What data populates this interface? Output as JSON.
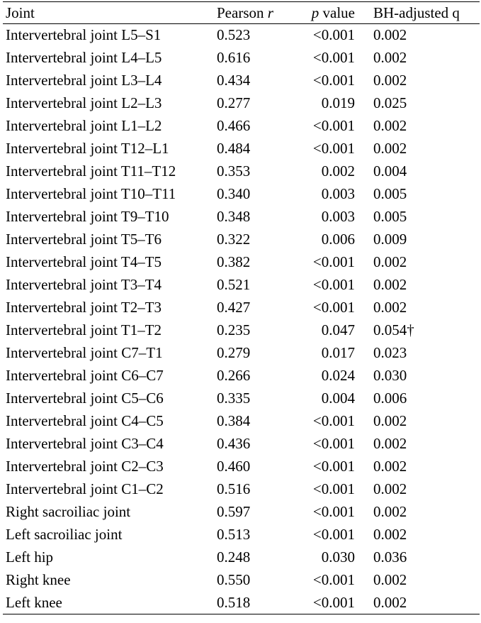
{
  "table": {
    "header": [
      [
        "Joint"
      ],
      [
        "Pearson ",
        "r"
      ],
      [
        "p",
        " value"
      ],
      [
        "BH-adjusted q"
      ]
    ],
    "rows": [
      [
        "Intervertebral joint L5–S1",
        "0.523",
        "<0.001",
        "0.002"
      ],
      [
        "Intervertebral joint L4–L5",
        "0.616",
        "<0.001",
        "0.002"
      ],
      [
        "Intervertebral joint L3–L4",
        "0.434",
        "<0.001",
        "0.002"
      ],
      [
        "Intervertebral joint L2–L3",
        "0.277",
        "0.019",
        "0.025"
      ],
      [
        "Intervertebral joint L1–L2",
        "0.466",
        "<0.001",
        "0.002"
      ],
      [
        "Intervertebral joint T12–L1",
        "0.484",
        "<0.001",
        "0.002"
      ],
      [
        "Intervertebral joint T11–T12",
        "0.353",
        "0.002",
        "0.004"
      ],
      [
        "Intervertebral joint T10–T11",
        "0.340",
        "0.003",
        "0.005"
      ],
      [
        "Intervertebral joint T9–T10",
        "0.348",
        "0.003",
        "0.005"
      ],
      [
        "Intervertebral joint T5–T6",
        "0.322",
        "0.006",
        "0.009"
      ],
      [
        "Intervertebral joint T4–T5",
        "0.382",
        "<0.001",
        "0.002"
      ],
      [
        "Intervertebral joint T3–T4",
        "0.521",
        "<0.001",
        "0.002"
      ],
      [
        "Intervertebral joint T2–T3",
        "0.427",
        "<0.001",
        "0.002"
      ],
      [
        "Intervertebral joint T1–T2",
        "0.235",
        "0.047",
        "0.054†"
      ],
      [
        "Intervertebral joint C7–T1",
        "0.279",
        "0.017",
        "0.023"
      ],
      [
        "Intervertebral joint C6–C7",
        "0.266",
        "0.024",
        "0.030"
      ],
      [
        "Intervertebral joint C5–C6",
        "0.335",
        "0.004",
        "0.006"
      ],
      [
        "Intervertebral joint C4–C5",
        "0.384",
        "<0.001",
        "0.002"
      ],
      [
        "Intervertebral joint C3–C4",
        "0.436",
        "<0.001",
        "0.002"
      ],
      [
        "Intervertebral joint C2–C3",
        "0.460",
        "<0.001",
        "0.002"
      ],
      [
        "Intervertebral joint C1–C2",
        "0.516",
        "<0.001",
        "0.002"
      ],
      [
        "Right sacroiliac joint",
        "0.597",
        "<0.001",
        "0.002"
      ],
      [
        "Left sacroiliac joint",
        "0.513",
        "<0.001",
        "0.002"
      ],
      [
        "Left hip",
        "0.248",
        "0.030",
        "0.036"
      ],
      [
        "Right knee",
        "0.550",
        "<0.001",
        "0.002"
      ],
      [
        "Left knee",
        "0.518",
        "<0.001",
        "0.002"
      ]
    ]
  }
}
